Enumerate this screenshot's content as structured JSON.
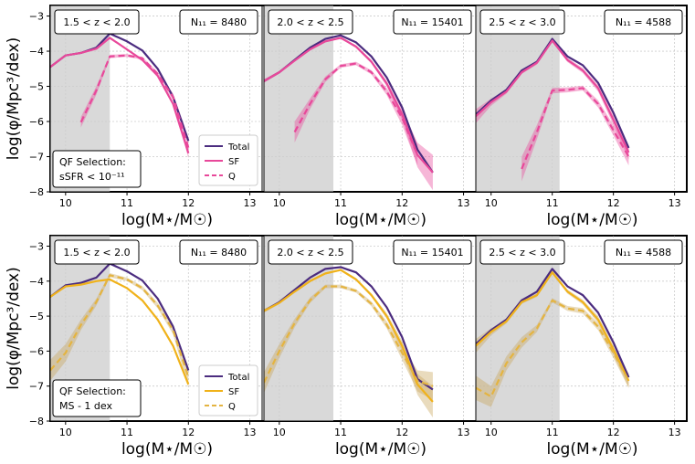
{
  "figure": {
    "ylabel": "log(φ/Mpc³/dex)",
    "xlabel": "log(M⋆/M☉)",
    "x_ticks": [
      "10",
      "11",
      "12",
      "13"
    ],
    "y_ticks": [
      "−3",
      "−4",
      "−5",
      "−6",
      "−7",
      "−8"
    ]
  },
  "colors": {
    "total": "#4b2c7f",
    "sf_top": "#e8489a",
    "q_top": "#e8489a",
    "sf_bottom": "#f0b21a",
    "q_bottom": "#e4b441",
    "band_top": "#e8489a",
    "band_bottom": "#c9a55a",
    "shade": "#d9d9d9",
    "grid": "#cccccc"
  },
  "legend": {
    "total": "Total",
    "sf": "SF",
    "q": "Q"
  },
  "rows": [
    {
      "selection_label": [
        "QF Selection:",
        "sSFR < 10⁻¹¹"
      ],
      "sf_key": "sf_top",
      "q_key": "q_top",
      "band_key": "band_top"
    },
    {
      "selection_label": [
        "QF Selection:",
        "MS - 1 dex"
      ],
      "sf_key": "sf_bottom",
      "q_key": "q_bottom",
      "band_key": "band_bottom"
    }
  ],
  "columns": [
    {
      "z_label": "1.5 < z < 2.0",
      "n_label": "N₁₁ = 8480",
      "shade_range": [
        9.75,
        10.72
      ]
    },
    {
      "z_label": "2.0 < z < 2.5",
      "n_label": "N₁₁ = 15401",
      "shade_range": [
        9.75,
        10.88
      ]
    },
    {
      "z_label": "2.5 < z < 3.0",
      "n_label": "N₁₁ = 4588",
      "shade_range": [
        9.75,
        11.12
      ]
    }
  ],
  "chart_data": {
    "type": "line",
    "title": "",
    "xlabel": "log(M⋆/M☉)",
    "ylabel": "log(φ/Mpc³/dex)",
    "xlim": [
      9.75,
      13.2
    ],
    "ylim": [
      -8,
      -2.7
    ],
    "panels": [
      {
        "row": 0,
        "col": 0,
        "selection": "sSFR < 10⁻¹¹",
        "redshift": "1.5 < z < 2.0",
        "series": [
          {
            "name": "Total",
            "x": [
              9.75,
              10.0,
              10.25,
              10.5,
              10.72,
              11.0,
              11.25,
              11.5,
              11.75,
              12.0
            ],
            "y": [
              -4.45,
              -4.12,
              -4.05,
              -3.9,
              -3.5,
              -3.72,
              -3.98,
              -4.5,
              -5.3,
              -6.55
            ]
          },
          {
            "name": "SF",
            "x": [
              9.75,
              10.0,
              10.25,
              10.5,
              10.72,
              11.0,
              11.25,
              11.5,
              11.75,
              12.0
            ],
            "y": [
              -4.45,
              -4.12,
              -4.05,
              -3.93,
              -3.62,
              -3.95,
              -4.25,
              -4.7,
              -5.5,
              -6.9
            ]
          },
          {
            "name": "Q",
            "x": [
              10.25,
              10.5,
              10.72,
              11.0,
              11.25,
              11.5,
              11.75,
              12.0
            ],
            "y": [
              -6.02,
              -5.12,
              -4.15,
              -4.12,
              -4.2,
              -4.65,
              -5.3,
              -6.75
            ],
            "band": [
              0.15,
              0.12,
              0.05,
              0.04,
              0.04,
              0.06,
              0.1,
              0.3
            ]
          }
        ]
      },
      {
        "row": 0,
        "col": 1,
        "selection": "sSFR < 10⁻¹¹",
        "redshift": "2.0 < z < 2.5",
        "series": [
          {
            "name": "Total",
            "x": [
              9.75,
              10.0,
              10.25,
              10.5,
              10.75,
              11.0,
              11.25,
              11.5,
              11.75,
              12.0,
              12.25,
              12.5
            ],
            "y": [
              -4.85,
              -4.6,
              -4.25,
              -3.9,
              -3.65,
              -3.55,
              -3.75,
              -4.15,
              -4.75,
              -5.6,
              -6.8,
              -7.45
            ]
          },
          {
            "name": "SF",
            "x": [
              9.75,
              10.0,
              10.25,
              10.5,
              10.75,
              11.0,
              11.25,
              11.5,
              11.75,
              12.0,
              12.25,
              12.5
            ],
            "y": [
              -4.85,
              -4.6,
              -4.27,
              -3.95,
              -3.72,
              -3.62,
              -3.87,
              -4.3,
              -4.92,
              -5.8,
              -6.95,
              -7.45
            ],
            "band": [
              0.05,
              0.04,
              0.03,
              0.03,
              0.03,
              0.03,
              0.04,
              0.05,
              0.08,
              0.15,
              0.35,
              0.5
            ]
          },
          {
            "name": "Q",
            "x": [
              10.25,
              10.5,
              10.75,
              11.0,
              11.25,
              11.5,
              11.75,
              12.0,
              12.25
            ],
            "y": [
              -6.3,
              -5.5,
              -4.8,
              -4.42,
              -4.35,
              -4.6,
              -5.15,
              -5.9,
              -6.95
            ],
            "band": [
              0.3,
              0.15,
              0.08,
              0.05,
              0.05,
              0.06,
              0.1,
              0.2,
              0.3
            ]
          }
        ]
      },
      {
        "row": 0,
        "col": 2,
        "selection": "sSFR < 10⁻¹¹",
        "redshift": "2.5 < z < 3.0",
        "series": [
          {
            "name": "Total",
            "x": [
              9.75,
              10.0,
              10.25,
              10.5,
              10.75,
              11.0,
              11.25,
              11.5,
              11.75,
              12.0,
              12.25
            ],
            "y": [
              -5.8,
              -5.4,
              -5.1,
              -4.55,
              -4.3,
              -3.65,
              -4.15,
              -4.4,
              -4.9,
              -5.75,
              -6.75
            ]
          },
          {
            "name": "SF",
            "x": [
              9.75,
              10.0,
              10.25,
              10.5,
              10.75,
              11.0,
              11.25,
              11.5,
              11.75,
              12.0,
              12.25
            ],
            "y": [
              -5.85,
              -5.45,
              -5.15,
              -4.6,
              -4.33,
              -3.7,
              -4.25,
              -4.55,
              -5.05,
              -5.95,
              -6.88
            ],
            "band": [
              0.2,
              0.1,
              0.06,
              0.05,
              0.05,
              0.04,
              0.06,
              0.07,
              0.1,
              0.15,
              0.2
            ]
          },
          {
            "name": "Q",
            "x": [
              10.5,
              10.75,
              11.0,
              11.25,
              11.5,
              11.75,
              12.0,
              12.25
            ],
            "y": [
              -7.35,
              -6.3,
              -5.12,
              -5.1,
              -5.05,
              -5.5,
              -6.25,
              -7.0
            ],
            "band": [
              0.35,
              0.2,
              0.08,
              0.07,
              0.07,
              0.1,
              0.15,
              0.25
            ]
          }
        ]
      },
      {
        "row": 1,
        "col": 0,
        "selection": "MS - 1 dex",
        "redshift": "1.5 < z < 2.0",
        "series": [
          {
            "name": "Total",
            "x": [
              9.75,
              10.0,
              10.25,
              10.5,
              10.72,
              11.0,
              11.25,
              11.5,
              11.75,
              12.0
            ],
            "y": [
              -4.45,
              -4.12,
              -4.05,
              -3.9,
              -3.5,
              -3.72,
              -3.98,
              -4.5,
              -5.3,
              -6.55
            ]
          },
          {
            "name": "SF",
            "x": [
              9.75,
              10.0,
              10.25,
              10.5,
              10.72,
              11.0,
              11.25,
              11.5,
              11.75,
              12.0
            ],
            "y": [
              -4.45,
              -4.15,
              -4.1,
              -4.0,
              -3.95,
              -4.2,
              -4.55,
              -5.1,
              -5.85,
              -6.95
            ]
          },
          {
            "name": "Q",
            "x": [
              9.75,
              10.0,
              10.25,
              10.5,
              10.72,
              11.0,
              11.25,
              11.5,
              11.75,
              12.0
            ],
            "y": [
              -6.55,
              -6.05,
              -5.25,
              -4.6,
              -3.83,
              -3.95,
              -4.2,
              -4.7,
              -5.4,
              -6.75
            ],
            "band": [
              0.3,
              0.25,
              0.15,
              0.1,
              0.06,
              0.05,
              0.06,
              0.08,
              0.12,
              0.3
            ]
          }
        ]
      },
      {
        "row": 1,
        "col": 1,
        "selection": "MS - 1 dex",
        "redshift": "2.0 < z < 2.5",
        "series": [
          {
            "name": "Total",
            "x": [
              9.75,
              10.0,
              10.25,
              10.5,
              10.75,
              11.0,
              11.25,
              11.5,
              11.75,
              12.0,
              12.25,
              12.5
            ],
            "y": [
              -4.85,
              -4.6,
              -4.25,
              -3.9,
              -3.65,
              -3.6,
              -3.75,
              -4.15,
              -4.75,
              -5.6,
              -6.8,
              -7.1
            ]
          },
          {
            "name": "SF",
            "x": [
              9.75,
              10.0,
              10.25,
              10.5,
              10.75,
              11.0,
              11.25,
              11.5,
              11.75,
              12.0,
              12.25,
              12.5
            ],
            "y": [
              -4.85,
              -4.62,
              -4.3,
              -4.0,
              -3.78,
              -3.68,
              -3.95,
              -4.4,
              -5.0,
              -5.85,
              -6.95,
              -7.45
            ],
            "band": [
              0.05,
              0.04,
              0.03,
              0.03,
              0.03,
              0.03,
              0.04,
              0.05,
              0.08,
              0.15,
              0.3,
              0.45
            ]
          },
          {
            "name": "Q",
            "x": [
              9.75,
              10.0,
              10.25,
              10.5,
              10.75,
              11.0,
              11.25,
              11.5,
              11.75,
              12.0,
              12.25,
              12.5
            ],
            "y": [
              -6.9,
              -6.0,
              -5.2,
              -4.55,
              -4.15,
              -4.15,
              -4.28,
              -4.65,
              -5.25,
              -6.05,
              -6.85,
              -7.0
            ],
            "band": [
              0.3,
              0.2,
              0.12,
              0.08,
              0.05,
              0.05,
              0.05,
              0.07,
              0.1,
              0.2,
              0.3,
              0.4
            ]
          }
        ]
      },
      {
        "row": 1,
        "col": 2,
        "selection": "MS - 1 dex",
        "redshift": "2.5 < z < 3.0",
        "series": [
          {
            "name": "Total",
            "x": [
              9.75,
              10.0,
              10.25,
              10.5,
              10.75,
              11.0,
              11.25,
              11.5,
              11.75,
              12.0,
              12.25
            ],
            "y": [
              -5.8,
              -5.4,
              -5.1,
              -4.55,
              -4.3,
              -3.65,
              -4.15,
              -4.4,
              -4.9,
              -5.75,
              -6.75
            ]
          },
          {
            "name": "SF",
            "x": [
              9.75,
              10.0,
              10.25,
              10.5,
              10.75,
              11.0,
              11.25,
              11.5,
              11.75,
              12.0,
              12.25
            ],
            "y": [
              -5.85,
              -5.45,
              -5.15,
              -4.6,
              -4.4,
              -3.75,
              -4.3,
              -4.6,
              -5.1,
              -5.95,
              -6.85
            ],
            "band": [
              0.2,
              0.1,
              0.06,
              0.05,
              0.05,
              0.04,
              0.06,
              0.07,
              0.1,
              0.15,
              0.2
            ]
          },
          {
            "name": "Q",
            "x": [
              9.75,
              10.0,
              10.25,
              10.5,
              10.75,
              11.0,
              11.25,
              11.5,
              11.75,
              12.0,
              12.25
            ],
            "y": [
              -7.05,
              -7.3,
              -6.35,
              -5.75,
              -5.35,
              -4.55,
              -4.78,
              -4.85,
              -5.3,
              -6.05,
              -6.85
            ],
            "band": [
              0.35,
              0.3,
              0.2,
              0.15,
              0.1,
              0.06,
              0.07,
              0.08,
              0.1,
              0.15,
              0.2
            ]
          }
        ]
      }
    ]
  }
}
